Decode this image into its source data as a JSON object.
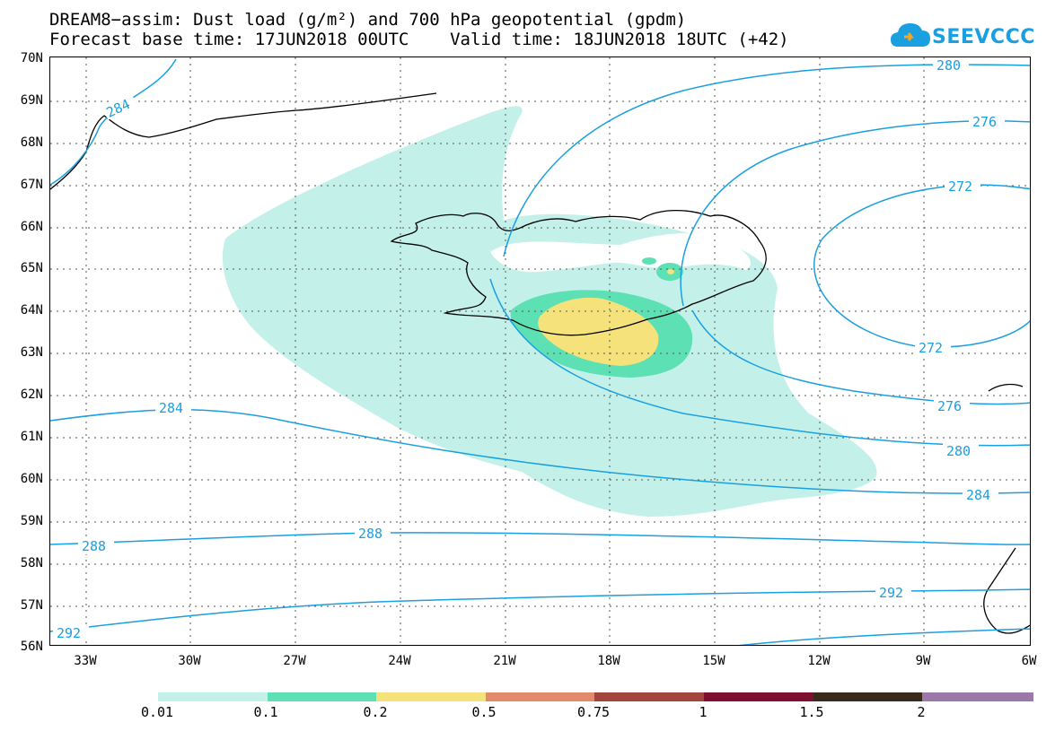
{
  "title_line1": "DREAM8−assim: Dust load (g/m²) and 700 hPa geopotential (gpdm)",
  "title_line2": "Forecast base time: 17JUN2018 00UTC    Valid time: 18JUN2018 18UTC (+42)",
  "logo_text": "SEEVCCC",
  "lat_labels": [
    "70N",
    "69N",
    "68N",
    "67N",
    "66N",
    "65N",
    "64N",
    "63N",
    "62N",
    "61N",
    "60N",
    "59N",
    "58N",
    "57N",
    "56N"
  ],
  "lon_labels": [
    "33W",
    "30W",
    "27W",
    "24W",
    "21W",
    "18W",
    "15W",
    "12W",
    "9W",
    "6W"
  ],
  "contour_labels": [
    "280",
    "284",
    "276",
    "272",
    "272",
    "276",
    "284",
    "280",
    "284",
    "288",
    "288",
    "292",
    "292"
  ],
  "colorbar": {
    "colors": [
      "#c3f1ea",
      "#5de0b3",
      "#f5e27a",
      "#e38a6b",
      "#a3453f",
      "#7d0f2f",
      "#3a2a1c",
      "#9c78a9"
    ],
    "tick_labels": [
      "0.01",
      "0.1",
      "0.2",
      "0.5",
      "0.75",
      "1",
      "1.5",
      "2"
    ]
  }
}
